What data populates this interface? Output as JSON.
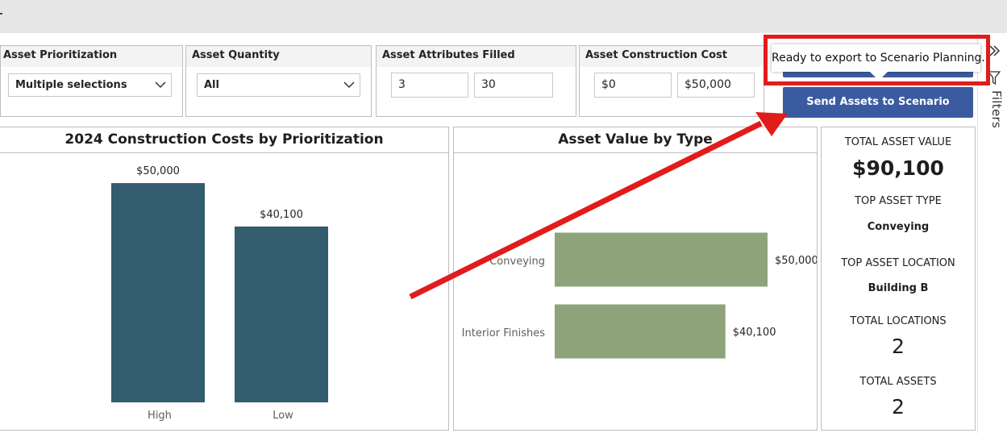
{
  "slicers": [
    {
      "title": "Asset Prioritization",
      "value": "Multiple selections"
    },
    {
      "title": "Asset Quantity",
      "value": "All"
    },
    {
      "title": "Asset Attributes Filled",
      "min": "3",
      "max": "30"
    },
    {
      "title": "Asset Construction Cost",
      "min": "$0",
      "max": "$50,000"
    }
  ],
  "tooltip": "Ready to export to Scenario Planning.",
  "send_button": "Send Assets to Scenario Planning",
  "filter_pane": {
    "label": "Filters",
    "collapse_icon": "double-chevron-right-icon",
    "filter_icon": "funnel-icon"
  },
  "colors": {
    "bar_blue": "#335c6e",
    "bar_green": "#8fa37a",
    "button_blue": "#3a5ba0",
    "highlight_red": "#e21b1b"
  },
  "chart_data": [
    {
      "type": "bar",
      "title": "2024 Construction Costs by Prioritization",
      "categories": [
        "High",
        "Low"
      ],
      "values": [
        50000,
        40100
      ],
      "data_labels": [
        "$50,000",
        "$40,100"
      ],
      "ylim": [
        0,
        57000
      ],
      "grid": false
    },
    {
      "type": "bar",
      "orientation": "horizontal",
      "title": "Asset Value by Type",
      "categories": [
        "Conveying",
        "Interior Finishes"
      ],
      "values": [
        50000,
        40100
      ],
      "data_labels": [
        "$50,000",
        "$40,100"
      ],
      "xlim": [
        0,
        50000
      ],
      "grid": false
    }
  ],
  "kpis": {
    "total_asset_value_label": "TOTAL ASSET VALUE",
    "total_asset_value": "$90,100",
    "top_asset_type_label": "TOP ASSET TYPE",
    "top_asset_type": "Conveying",
    "top_asset_location_label": "TOP ASSET LOCATION",
    "top_asset_location": "Building B",
    "total_locations_label": "TOTAL LOCATIONS",
    "total_locations": "2",
    "total_assets_label": "TOTAL ASSETS",
    "total_assets": "2"
  }
}
